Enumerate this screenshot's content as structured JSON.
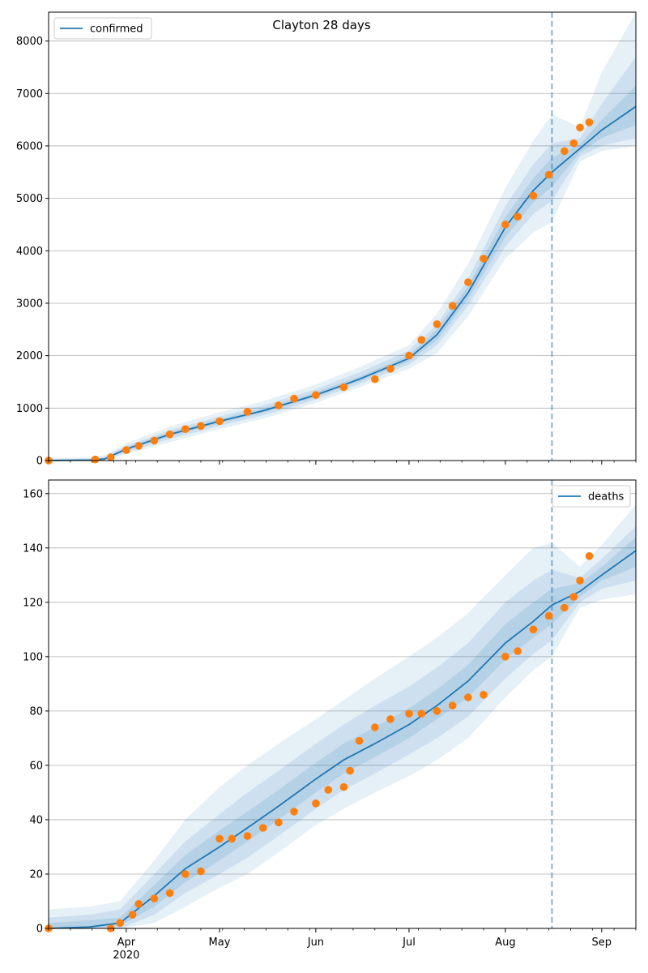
{
  "figure": {
    "title": "Clayton 28 days",
    "year_label": "2020"
  },
  "colors": {
    "model_line": "#1f77b4",
    "band": "#1f77b4",
    "observed": "#ff7f0e",
    "grid": "#b0b0b0"
  },
  "x_axis": {
    "labels": [
      "Apr",
      "May",
      "Jun",
      "Jul",
      "Aug",
      "Sep"
    ],
    "label_dates": [
      "2020-04-01",
      "2020-05-01",
      "2020-06-01",
      "2020-07-01",
      "2020-08-01",
      "2020-09-01"
    ],
    "start": "2020-03-07",
    "end": "2020-09-12",
    "forecast_start": "2020-08-16"
  },
  "chart_data": [
    {
      "type": "line",
      "legend": "confirmed",
      "legend_position": "upper-left",
      "ylim": [
        0,
        8550
      ],
      "yticks": [
        0,
        1000,
        2000,
        3000,
        4000,
        5000,
        6000,
        7000,
        8000
      ],
      "grid": "horizontal",
      "model": {
        "name": "confirmed",
        "x": [
          "2020-03-07",
          "2020-03-20",
          "2020-03-25",
          "2020-04-01",
          "2020-04-15",
          "2020-05-01",
          "2020-05-15",
          "2020-06-01",
          "2020-06-15",
          "2020-07-01",
          "2020-07-10",
          "2020-07-20",
          "2020-08-01",
          "2020-08-10",
          "2020-08-16",
          "2020-08-25",
          "2020-09-01",
          "2020-09-12"
        ],
        "y": [
          0,
          10,
          30,
          220,
          500,
          750,
          950,
          1250,
          1550,
          1950,
          2400,
          3200,
          4450,
          5150,
          5500,
          5950,
          6300,
          6750
        ]
      },
      "bands": {
        "x": [
          "2020-03-07",
          "2020-03-20",
          "2020-03-25",
          "2020-04-01",
          "2020-04-15",
          "2020-05-01",
          "2020-05-15",
          "2020-06-01",
          "2020-06-15",
          "2020-07-01",
          "2020-07-10",
          "2020-07-20",
          "2020-08-01",
          "2020-08-10",
          "2020-08-16",
          "2020-08-25",
          "2020-09-01",
          "2020-09-12"
        ],
        "outer_low": [
          0,
          0,
          0,
          120,
          350,
          600,
          800,
          1100,
          1400,
          1750,
          2050,
          2750,
          3850,
          4350,
          4550,
          5700,
          5900,
          6000
        ],
        "outer_high": [
          50,
          60,
          100,
          330,
          650,
          920,
          1130,
          1450,
          1780,
          2200,
          2800,
          3750,
          5200,
          6100,
          6600,
          6350,
          7400,
          8550
        ],
        "mid_low": [
          0,
          0,
          10,
          160,
          410,
          660,
          860,
          1160,
          1460,
          1830,
          2200,
          2950,
          4080,
          4700,
          4950,
          5800,
          6000,
          6150
        ],
        "mid_high": [
          30,
          35,
          70,
          280,
          580,
          840,
          1050,
          1360,
          1680,
          2100,
          2600,
          3470,
          4850,
          5650,
          6050,
          6150,
          6800,
          7700
        ],
        "inner_low": [
          0,
          0,
          20,
          190,
          460,
          710,
          910,
          1210,
          1510,
          1890,
          2300,
          3080,
          4260,
          4920,
          5220,
          5870,
          6150,
          6400
        ],
        "inner_high": [
          15,
          20,
          45,
          250,
          540,
          790,
          990,
          1300,
          1600,
          2010,
          2500,
          3330,
          4650,
          5380,
          5780,
          6030,
          6500,
          7150
        ]
      },
      "observed": {
        "name": "observed",
        "x": [
          "2020-03-07",
          "2020-03-22",
          "2020-03-27",
          "2020-04-01",
          "2020-04-05",
          "2020-04-10",
          "2020-04-15",
          "2020-04-20",
          "2020-04-25",
          "2020-05-01",
          "2020-05-10",
          "2020-05-20",
          "2020-05-25",
          "2020-06-01",
          "2020-06-10",
          "2020-06-20",
          "2020-06-25",
          "2020-07-01",
          "2020-07-05",
          "2020-07-10",
          "2020-07-15",
          "2020-07-20",
          "2020-07-25",
          "2020-08-01",
          "2020-08-05",
          "2020-08-10",
          "2020-08-15",
          "2020-08-20",
          "2020-08-23",
          "2020-08-25",
          "2020-08-28"
        ],
        "y": [
          0,
          20,
          60,
          200,
          280,
          380,
          500,
          600,
          660,
          750,
          930,
          1050,
          1180,
          1250,
          1400,
          1550,
          1750,
          2000,
          2300,
          2600,
          2950,
          3400,
          3850,
          4500,
          4650,
          5050,
          5450,
          5900,
          6050,
          6350,
          6450
        ]
      }
    },
    {
      "type": "line",
      "legend": "deaths",
      "legend_position": "upper-right",
      "ylim": [
        0,
        165
      ],
      "yticks": [
        0,
        20,
        40,
        60,
        80,
        100,
        120,
        140,
        160
      ],
      "grid": "horizontal",
      "model": {
        "name": "deaths",
        "x": [
          "2020-03-07",
          "2020-03-20",
          "2020-03-30",
          "2020-04-10",
          "2020-04-20",
          "2020-05-01",
          "2020-05-10",
          "2020-05-20",
          "2020-06-01",
          "2020-06-10",
          "2020-06-20",
          "2020-07-01",
          "2020-07-10",
          "2020-07-20",
          "2020-08-01",
          "2020-08-10",
          "2020-08-16",
          "2020-08-25",
          "2020-09-01",
          "2020-09-12"
        ],
        "y": [
          0,
          0.5,
          2,
          12,
          22,
          30,
          37,
          45,
          55,
          62,
          68,
          75,
          82,
          91,
          105,
          113,
          119,
          124,
          130,
          139
        ]
      },
      "bands": {
        "x": [
          "2020-03-07",
          "2020-03-20",
          "2020-03-30",
          "2020-04-10",
          "2020-04-20",
          "2020-05-01",
          "2020-05-10",
          "2020-05-20",
          "2020-06-01",
          "2020-06-10",
          "2020-06-20",
          "2020-07-01",
          "2020-07-10",
          "2020-07-20",
          "2020-08-01",
          "2020-08-10",
          "2020-08-16",
          "2020-08-25",
          "2020-09-01",
          "2020-09-12"
        ],
        "outer_low": [
          0,
          0,
          0,
          2,
          8,
          15,
          20,
          28,
          38,
          44,
          50,
          56,
          62,
          70,
          85,
          95,
          100,
          118,
          121,
          123
        ],
        "outer_high": [
          7,
          8,
          10,
          25,
          40,
          52,
          60,
          68,
          77,
          84,
          92,
          100,
          107,
          116,
          130,
          140,
          142,
          133,
          141,
          156
        ],
        "mid_low": [
          0,
          0,
          0,
          5,
          13,
          20,
          26,
          34,
          44,
          51,
          57,
          64,
          70,
          78,
          92,
          101,
          106,
          120,
          125,
          128
        ],
        "mid_high": [
          4,
          5,
          7,
          20,
          32,
          42,
          50,
          58,
          68,
          75,
          82,
          89,
          96,
          105,
          120,
          128,
          132,
          129,
          136,
          148
        ],
        "inner_low": [
          0,
          0,
          1,
          8,
          17,
          25,
          32,
          40,
          50,
          57,
          63,
          70,
          77,
          85,
          99,
          107,
          112,
          122,
          128,
          133
        ],
        "inner_high": [
          2,
          3,
          4,
          16,
          27,
          36,
          43,
          51,
          61,
          68,
          74,
          81,
          88,
          97,
          112,
          120,
          125,
          127,
          133,
          144
        ]
      },
      "observed": {
        "name": "observed",
        "x": [
          "2020-03-07",
          "2020-03-27",
          "2020-03-30",
          "2020-04-03",
          "2020-04-05",
          "2020-04-10",
          "2020-04-15",
          "2020-04-20",
          "2020-04-25",
          "2020-05-01",
          "2020-05-05",
          "2020-05-10",
          "2020-05-15",
          "2020-05-20",
          "2020-05-25",
          "2020-06-01",
          "2020-06-05",
          "2020-06-10",
          "2020-06-12",
          "2020-06-15",
          "2020-06-20",
          "2020-06-25",
          "2020-07-01",
          "2020-07-05",
          "2020-07-10",
          "2020-07-15",
          "2020-07-20",
          "2020-07-25",
          "2020-08-01",
          "2020-08-05",
          "2020-08-10",
          "2020-08-15",
          "2020-08-20",
          "2020-08-23",
          "2020-08-25",
          "2020-08-28"
        ],
        "y": [
          0,
          0,
          2,
          5,
          9,
          11,
          13,
          20,
          21,
          33,
          33,
          34,
          37,
          39,
          43,
          46,
          51,
          52,
          58,
          69,
          74,
          77,
          79,
          79,
          80,
          82,
          85,
          86,
          100,
          102,
          110,
          115,
          118,
          122,
          128,
          137
        ]
      }
    }
  ]
}
